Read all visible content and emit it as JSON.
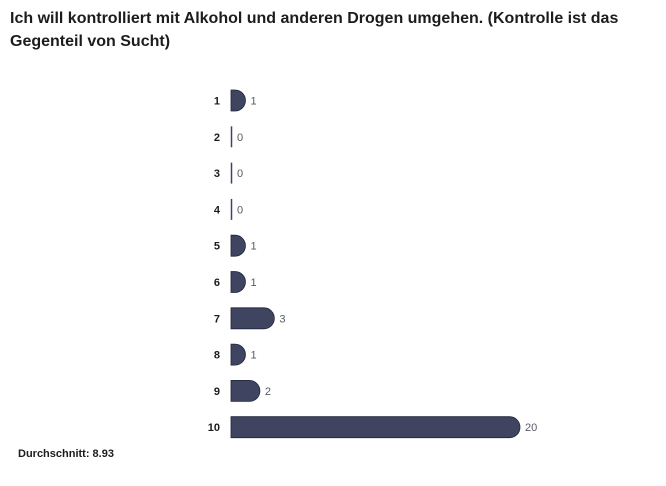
{
  "chart_data": {
    "type": "bar",
    "orientation": "horizontal",
    "title": "Ich will kontrolliert mit Alkohol und anderen Drogen umgehen. (Kontrolle ist das Gegenteil von Sucht)",
    "categories": [
      "1",
      "2",
      "3",
      "4",
      "5",
      "6",
      "7",
      "8",
      "9",
      "10"
    ],
    "values": [
      1,
      0,
      0,
      0,
      1,
      1,
      3,
      1,
      2,
      20
    ],
    "xlim": [
      0,
      20
    ],
    "grid": false,
    "bar_color": "#3f4561",
    "average_label": "Durchschnitt: 8.93"
  }
}
